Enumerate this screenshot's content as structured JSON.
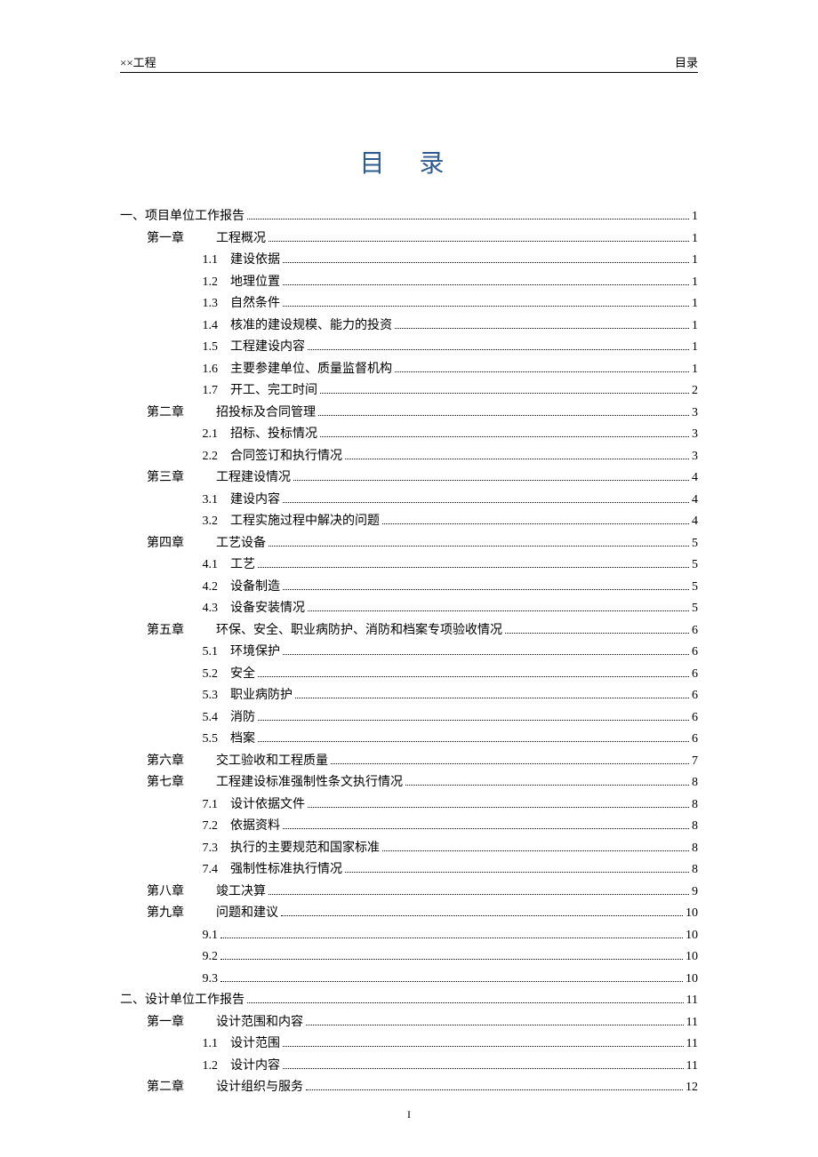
{
  "header": {
    "left": "××工程",
    "right": "目录"
  },
  "title": "目 录",
  "footer": "I",
  "colors": {
    "title_color": "#2e5b8f",
    "text_color": "#000000",
    "background": "#ffffff"
  },
  "typography": {
    "title_fontsize": 28,
    "body_fontsize": 14,
    "header_fontsize": 13,
    "font_family": "SimSun"
  },
  "toc": [
    {
      "indent": 0,
      "label": "一、",
      "text": "项目单位工作报告",
      "page": "1"
    },
    {
      "indent": 1,
      "label": "第一章",
      "text": "工程概况",
      "page": "1"
    },
    {
      "indent": 2,
      "label": "1.1",
      "text": "建设依据",
      "page": "1"
    },
    {
      "indent": 2,
      "label": "1.2",
      "text": "地理位置",
      "page": "1"
    },
    {
      "indent": 2,
      "label": "1.3",
      "text": "自然条件",
      "page": "1"
    },
    {
      "indent": 2,
      "label": "1.4",
      "text": "核准的建设规模、能力的投资",
      "page": "1"
    },
    {
      "indent": 2,
      "label": "1.5",
      "text": "工程建设内容",
      "page": "1"
    },
    {
      "indent": 2,
      "label": "1.6",
      "text": "主要参建单位、质量监督机构",
      "page": "1"
    },
    {
      "indent": 2,
      "label": "1.7",
      "text": "开工、完工时间",
      "page": "2"
    },
    {
      "indent": 1,
      "label": "第二章",
      "text": "招投标及合同管理",
      "page": "3"
    },
    {
      "indent": 2,
      "label": "2.1",
      "text": "招标、投标情况",
      "page": "3"
    },
    {
      "indent": 2,
      "label": "2.2",
      "text": "合同签订和执行情况",
      "page": "3"
    },
    {
      "indent": 1,
      "label": "第三章",
      "text": "工程建设情况",
      "page": "4"
    },
    {
      "indent": 2,
      "label": "3.1",
      "text": "建设内容",
      "page": "4"
    },
    {
      "indent": 2,
      "label": "3.2",
      "text": "工程实施过程中解决的问题",
      "page": "4"
    },
    {
      "indent": 1,
      "label": "第四章",
      "text": "工艺设备",
      "page": "5"
    },
    {
      "indent": 2,
      "label": "4.1",
      "text": "工艺",
      "page": "5"
    },
    {
      "indent": 2,
      "label": "4.2",
      "text": "设备制造",
      "page": "5"
    },
    {
      "indent": 2,
      "label": "4.3",
      "text": "设备安装情况",
      "page": "5"
    },
    {
      "indent": 1,
      "label": "第五章",
      "text": "环保、安全、职业病防护、消防和档案专项验收情况",
      "page": "6"
    },
    {
      "indent": 2,
      "label": "5.1",
      "text": "环境保护",
      "page": "6"
    },
    {
      "indent": 2,
      "label": "5.2",
      "text": "安全",
      "page": "6"
    },
    {
      "indent": 2,
      "label": "5.3",
      "text": "职业病防护",
      "page": "6"
    },
    {
      "indent": 2,
      "label": "5.4",
      "text": "消防",
      "page": "6"
    },
    {
      "indent": 2,
      "label": "5.5",
      "text": "档案",
      "page": "6"
    },
    {
      "indent": 1,
      "label": "第六章",
      "text": "交工验收和工程质量",
      "page": "7"
    },
    {
      "indent": 1,
      "label": "第七章",
      "text": "工程建设标准强制性条文执行情况",
      "page": "8"
    },
    {
      "indent": 2,
      "label": "7.1",
      "text": "设计依据文件",
      "page": "8"
    },
    {
      "indent": 2,
      "label": "7.2",
      "text": "依据资料",
      "page": "8"
    },
    {
      "indent": 2,
      "label": "7.3",
      "text": "执行的主要规范和国家标准",
      "page": "8"
    },
    {
      "indent": 2,
      "label": "7.4",
      "text": "强制性标准执行情况",
      "page": "8"
    },
    {
      "indent": 1,
      "label": "第八章",
      "text": "竣工决算",
      "page": "9"
    },
    {
      "indent": 1,
      "label": "第九章",
      "text": "问题和建议",
      "page": "10"
    },
    {
      "indent": 2,
      "label": "9.1",
      "text": "",
      "page": "10"
    },
    {
      "indent": 2,
      "label": "9.2",
      "text": "",
      "page": "10"
    },
    {
      "indent": 2,
      "label": "9.3",
      "text": "",
      "page": "10"
    },
    {
      "indent": 0,
      "label": "二、",
      "text": "设计单位工作报告",
      "page": "11"
    },
    {
      "indent": 1,
      "label": "第一章",
      "text": "设计范围和内容",
      "page": "11"
    },
    {
      "indent": 2,
      "label": "1.1",
      "text": "设计范围",
      "page": "11"
    },
    {
      "indent": 2,
      "label": "1.2",
      "text": "设计内容",
      "page": "11"
    },
    {
      "indent": 1,
      "label": "第二章",
      "text": "设计组织与服务",
      "page": "12"
    }
  ]
}
